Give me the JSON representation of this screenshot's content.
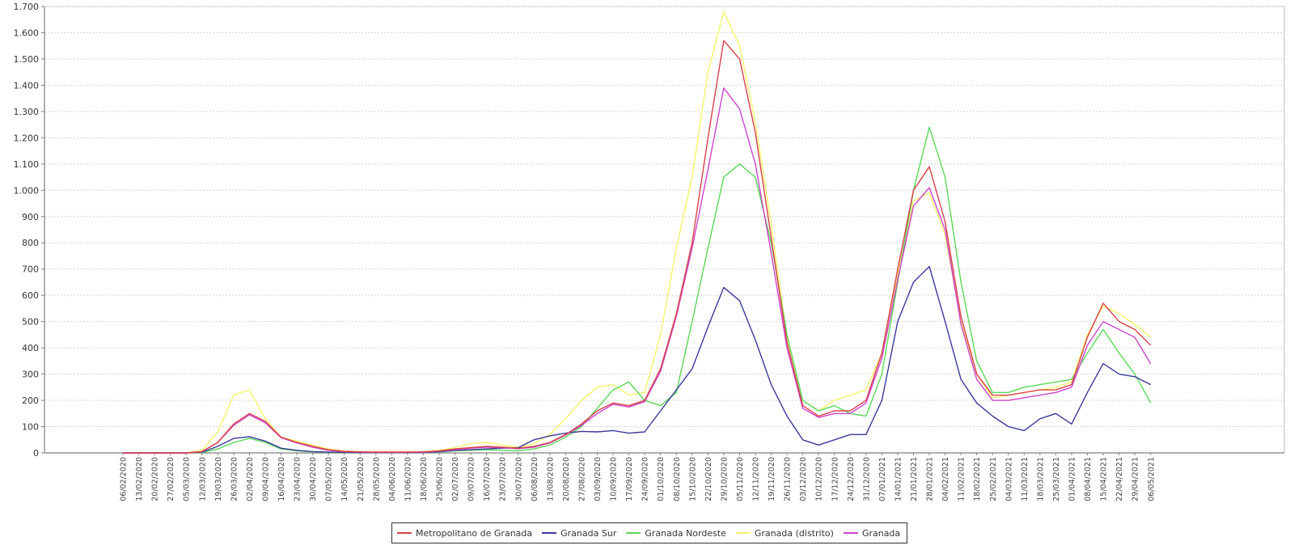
{
  "chart_data": {
    "type": "line",
    "title": "",
    "xlabel": "",
    "ylabel": "",
    "ylim": [
      0,
      1700
    ],
    "yticks": [
      0,
      100,
      200,
      300,
      400,
      500,
      600,
      700,
      800,
      900,
      1000,
      1100,
      1200,
      1300,
      1400,
      1500,
      1600,
      1700
    ],
    "ytick_labels": [
      "0",
      "100",
      "200",
      "300",
      "400",
      "500",
      "600",
      "700",
      "800",
      "900",
      "1.000",
      "1.100",
      "1.200",
      "1.300",
      "1.400",
      "1.500",
      "1.600",
      "1.700"
    ],
    "grid": true,
    "legend_position": "bottom",
    "x": [
      "06/02/2020",
      "13/02/2020",
      "20/02/2020",
      "27/02/2020",
      "05/03/2020",
      "12/03/2020",
      "19/03/2020",
      "26/03/2020",
      "02/04/2020",
      "09/04/2020",
      "16/04/2020",
      "23/04/2020",
      "30/04/2020",
      "07/05/2020",
      "14/05/2020",
      "21/05/2020",
      "28/05/2020",
      "04/06/2020",
      "11/06/2020",
      "18/06/2020",
      "25/06/2020",
      "02/07/2020",
      "09/07/2020",
      "16/07/2020",
      "23/07/2020",
      "30/07/2020",
      "06/08/2020",
      "13/08/2020",
      "20/08/2020",
      "27/08/2020",
      "03/09/2020",
      "10/09/2020",
      "17/09/2020",
      "24/09/2020",
      "01/10/2020",
      "08/10/2020",
      "15/10/2020",
      "22/10/2020",
      "29/10/2020",
      "05/11/2020",
      "12/11/2020",
      "19/11/2020",
      "26/11/2020",
      "03/12/2020",
      "10/12/2020",
      "17/12/2020",
      "24/12/2020",
      "31/12/2020",
      "07/01/2021",
      "14/01/2021",
      "21/01/2021",
      "28/01/2021",
      "04/02/2021",
      "11/02/2021",
      "18/02/2021",
      "25/02/2021",
      "04/03/2021",
      "11/03/2021",
      "18/03/2021",
      "25/03/2021",
      "01/04/2021",
      "08/04/2021",
      "15/04/2021",
      "22/04/2021",
      "29/04/2021",
      "06/05/2021"
    ],
    "series": [
      {
        "name": "Metropolitano de Granada",
        "color": "#d9404a",
        "values": [
          0,
          0,
          0,
          0,
          0,
          5,
          40,
          110,
          150,
          120,
          60,
          40,
          25,
          12,
          6,
          4,
          3,
          3,
          3,
          4,
          8,
          15,
          20,
          25,
          22,
          18,
          25,
          40,
          70,
          110,
          160,
          190,
          180,
          200,
          320,
          530,
          800,
          1200,
          1570,
          1500,
          1220,
          820,
          420,
          180,
          140,
          160,
          160,
          200,
          380,
          700,
          1000,
          1090,
          880,
          520,
          300,
          220,
          220,
          230,
          240,
          240,
          260,
          440,
          570,
          500,
          470,
          410
        ]
      },
      {
        "name": "Granada Sur",
        "color": "#3a3a9a",
        "values": [
          0,
          0,
          0,
          0,
          0,
          3,
          25,
          55,
          62,
          45,
          18,
          10,
          5,
          3,
          2,
          1,
          1,
          1,
          1,
          2,
          5,
          10,
          12,
          15,
          18,
          20,
          50,
          65,
          75,
          82,
          80,
          85,
          75,
          80,
          160,
          240,
          320,
          480,
          630,
          580,
          430,
          260,
          140,
          50,
          30,
          50,
          70,
          70,
          200,
          500,
          650,
          710,
          500,
          280,
          190,
          140,
          100,
          85,
          130,
          150,
          110,
          230,
          340,
          300,
          290,
          260
        ]
      },
      {
        "name": "Granada Nordeste",
        "color": "#5ad85a",
        "values": [
          0,
          0,
          0,
          0,
          0,
          2,
          15,
          40,
          55,
          40,
          15,
          8,
          4,
          2,
          1,
          1,
          1,
          1,
          1,
          2,
          4,
          8,
          10,
          12,
          10,
          8,
          15,
          30,
          60,
          100,
          170,
          240,
          270,
          200,
          180,
          230,
          500,
          780,
          1050,
          1100,
          1050,
          800,
          450,
          200,
          160,
          180,
          150,
          140,
          300,
          650,
          1000,
          1240,
          1050,
          650,
          350,
          230,
          230,
          250,
          260,
          270,
          280,
          380,
          470,
          380,
          300,
          190
        ]
      },
      {
        "name": "Granada (distrito)",
        "color": "#f5f56a",
        "values": [
          0,
          0,
          0,
          0,
          0,
          10,
          80,
          220,
          240,
          130,
          60,
          45,
          30,
          15,
          8,
          5,
          4,
          4,
          4,
          5,
          10,
          20,
          35,
          40,
          30,
          22,
          35,
          70,
          130,
          200,
          250,
          260,
          220,
          230,
          450,
          780,
          1050,
          1450,
          1680,
          1550,
          1260,
          870,
          440,
          200,
          160,
          200,
          220,
          240,
          380,
          680,
          960,
          990,
          830,
          500,
          300,
          210,
          220,
          230,
          240,
          250,
          270,
          450,
          560,
          530,
          490,
          440
        ]
      },
      {
        "name": "Granada",
        "color": "#cc44cc",
        "values": [
          0,
          0,
          0,
          0,
          0,
          5,
          40,
          105,
          145,
          115,
          58,
          38,
          22,
          10,
          5,
          3,
          2,
          2,
          2,
          3,
          7,
          13,
          18,
          22,
          20,
          16,
          22,
          38,
          68,
          105,
          150,
          185,
          175,
          195,
          310,
          520,
          780,
          1080,
          1390,
          1310,
          1100,
          760,
          400,
          170,
          135,
          150,
          150,
          190,
          360,
          660,
          940,
          1010,
          850,
          490,
          280,
          200,
          200,
          210,
          220,
          230,
          250,
          410,
          500,
          470,
          440,
          340
        ]
      }
    ]
  },
  "legend": {
    "items": [
      {
        "label": "Metropolitano de Granada",
        "color": "#d9404a"
      },
      {
        "label": "Granada Sur",
        "color": "#3a3a9a"
      },
      {
        "label": "Granada Nordeste",
        "color": "#5ad85a"
      },
      {
        "label": "Granada (distrito)",
        "color": "#f5f56a"
      },
      {
        "label": "Granada",
        "color": "#cc44cc"
      }
    ]
  }
}
